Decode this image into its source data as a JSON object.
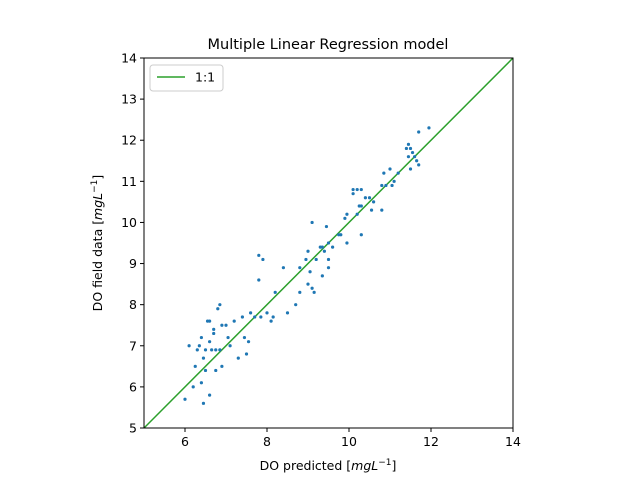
{
  "chart_data": {
    "type": "scatter",
    "title": "Multiple Linear Regression model",
    "xlabel": "DO predicted [mgL⁻¹]",
    "xlabel_parts": {
      "text": "DO predicted [",
      "math": "mgL",
      "sup": "−1",
      "close": "]"
    },
    "ylabel": "DO field data [mgL⁻¹]",
    "ylabel_parts": {
      "text": "DO field data [",
      "math": "mgL",
      "sup": "−1",
      "close": "]"
    },
    "xlim": [
      5,
      14
    ],
    "ylim": [
      5,
      14
    ],
    "xticks": [
      6,
      8,
      10,
      12,
      14
    ],
    "yticks": [
      5,
      6,
      7,
      8,
      9,
      10,
      11,
      12,
      13,
      14
    ],
    "grid": false,
    "legend": {
      "placement": "top-left",
      "entries": [
        {
          "label": "1:1",
          "color": "#2ca02c"
        }
      ]
    },
    "reference_line": {
      "label": "1:1",
      "from": [
        5,
        5
      ],
      "to": [
        14,
        14
      ],
      "color": "#2ca02c"
    },
    "point_color": "#1f77b4",
    "points": [
      [
        6.0,
        5.7
      ],
      [
        6.1,
        7.0
      ],
      [
        6.2,
        6.0
      ],
      [
        6.25,
        6.5
      ],
      [
        6.3,
        6.9
      ],
      [
        6.35,
        7.0
      ],
      [
        6.4,
        7.2
      ],
      [
        6.4,
        6.1
      ],
      [
        6.45,
        6.7
      ],
      [
        6.45,
        5.6
      ],
      [
        6.5,
        6.9
      ],
      [
        6.5,
        6.4
      ],
      [
        6.55,
        7.6
      ],
      [
        6.6,
        7.6
      ],
      [
        6.6,
        7.1
      ],
      [
        6.6,
        5.8
      ],
      [
        6.65,
        6.9
      ],
      [
        6.7,
        7.3
      ],
      [
        6.7,
        7.4
      ],
      [
        6.75,
        6.9
      ],
      [
        6.75,
        6.4
      ],
      [
        6.8,
        7.9
      ],
      [
        6.85,
        8.0
      ],
      [
        6.85,
        6.9
      ],
      [
        6.9,
        7.5
      ],
      [
        6.9,
        6.5
      ],
      [
        7.0,
        7.5
      ],
      [
        7.05,
        7.2
      ],
      [
        7.1,
        7.0
      ],
      [
        7.2,
        7.6
      ],
      [
        7.3,
        6.7
      ],
      [
        7.4,
        7.7
      ],
      [
        7.45,
        7.2
      ],
      [
        7.5,
        6.8
      ],
      [
        7.55,
        7.1
      ],
      [
        7.6,
        7.8
      ],
      [
        7.7,
        7.7
      ],
      [
        7.8,
        9.2
      ],
      [
        7.8,
        8.6
      ],
      [
        7.85,
        7.7
      ],
      [
        7.9,
        9.1
      ],
      [
        8.0,
        7.8
      ],
      [
        8.1,
        7.6
      ],
      [
        8.15,
        7.7
      ],
      [
        8.2,
        8.3
      ],
      [
        8.4,
        8.9
      ],
      [
        8.5,
        7.8
      ],
      [
        8.7,
        8.0
      ],
      [
        8.8,
        8.9
      ],
      [
        8.8,
        8.3
      ],
      [
        8.95,
        9.1
      ],
      [
        9.0,
        9.3
      ],
      [
        9.0,
        8.5
      ],
      [
        9.05,
        8.8
      ],
      [
        9.1,
        10.0
      ],
      [
        9.1,
        8.4
      ],
      [
        9.15,
        8.3
      ],
      [
        9.2,
        9.1
      ],
      [
        9.3,
        9.4
      ],
      [
        9.35,
        9.4
      ],
      [
        9.35,
        8.7
      ],
      [
        9.4,
        9.3
      ],
      [
        9.45,
        9.9
      ],
      [
        9.5,
        9.5
      ],
      [
        9.5,
        9.1
      ],
      [
        9.5,
        8.9
      ],
      [
        9.6,
        9.4
      ],
      [
        9.75,
        9.7
      ],
      [
        9.8,
        9.7
      ],
      [
        9.9,
        10.1
      ],
      [
        9.95,
        10.2
      ],
      [
        9.95,
        9.5
      ],
      [
        10.1,
        10.7
      ],
      [
        10.1,
        10.8
      ],
      [
        10.2,
        10.8
      ],
      [
        10.2,
        10.2
      ],
      [
        10.25,
        10.4
      ],
      [
        10.3,
        10.8
      ],
      [
        10.3,
        10.4
      ],
      [
        10.3,
        9.7
      ],
      [
        10.4,
        10.6
      ],
      [
        10.5,
        10.6
      ],
      [
        10.55,
        10.3
      ],
      [
        10.6,
        10.5
      ],
      [
        10.8,
        10.9
      ],
      [
        10.8,
        10.3
      ],
      [
        10.85,
        11.2
      ],
      [
        10.9,
        10.9
      ],
      [
        11.0,
        11.3
      ],
      [
        11.05,
        10.9
      ],
      [
        11.1,
        11.0
      ],
      [
        11.2,
        11.2
      ],
      [
        11.4,
        11.8
      ],
      [
        11.45,
        11.9
      ],
      [
        11.45,
        11.6
      ],
      [
        11.5,
        11.8
      ],
      [
        11.5,
        11.3
      ],
      [
        11.55,
        11.7
      ],
      [
        11.6,
        11.6
      ],
      [
        11.65,
        11.5
      ],
      [
        11.7,
        11.4
      ],
      [
        11.7,
        12.2
      ],
      [
        11.95,
        12.3
      ]
    ]
  }
}
